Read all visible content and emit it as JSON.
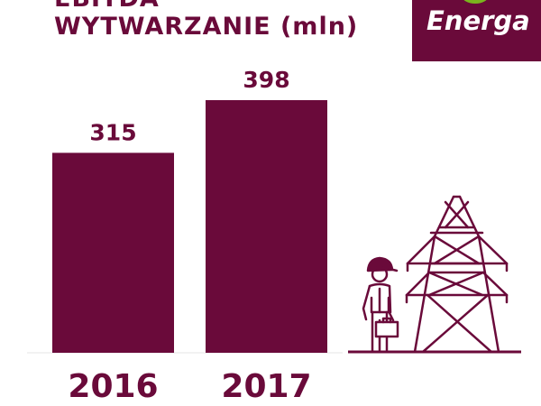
{
  "header": {
    "title_line1": "EBITDA",
    "title_line2": "WYTWARZANIE (mln)"
  },
  "logo": {
    "text": "Energa"
  },
  "colors": {
    "brand": "#6a0a3a",
    "logo_leaf": "#7ab51d",
    "background": "#ffffff"
  },
  "chart_data": {
    "type": "bar",
    "title": "EBITDA WYTWARZANIE (mln)",
    "categories": [
      "2016",
      "2017"
    ],
    "values": [
      315,
      398
    ],
    "data_labels": [
      "315",
      "398"
    ],
    "ylim": [
      0,
      398
    ],
    "grid": false,
    "legend": "none"
  },
  "illustration": {
    "icons": [
      "worker-with-briefcase-icon",
      "power-pylon-icon"
    ]
  }
}
